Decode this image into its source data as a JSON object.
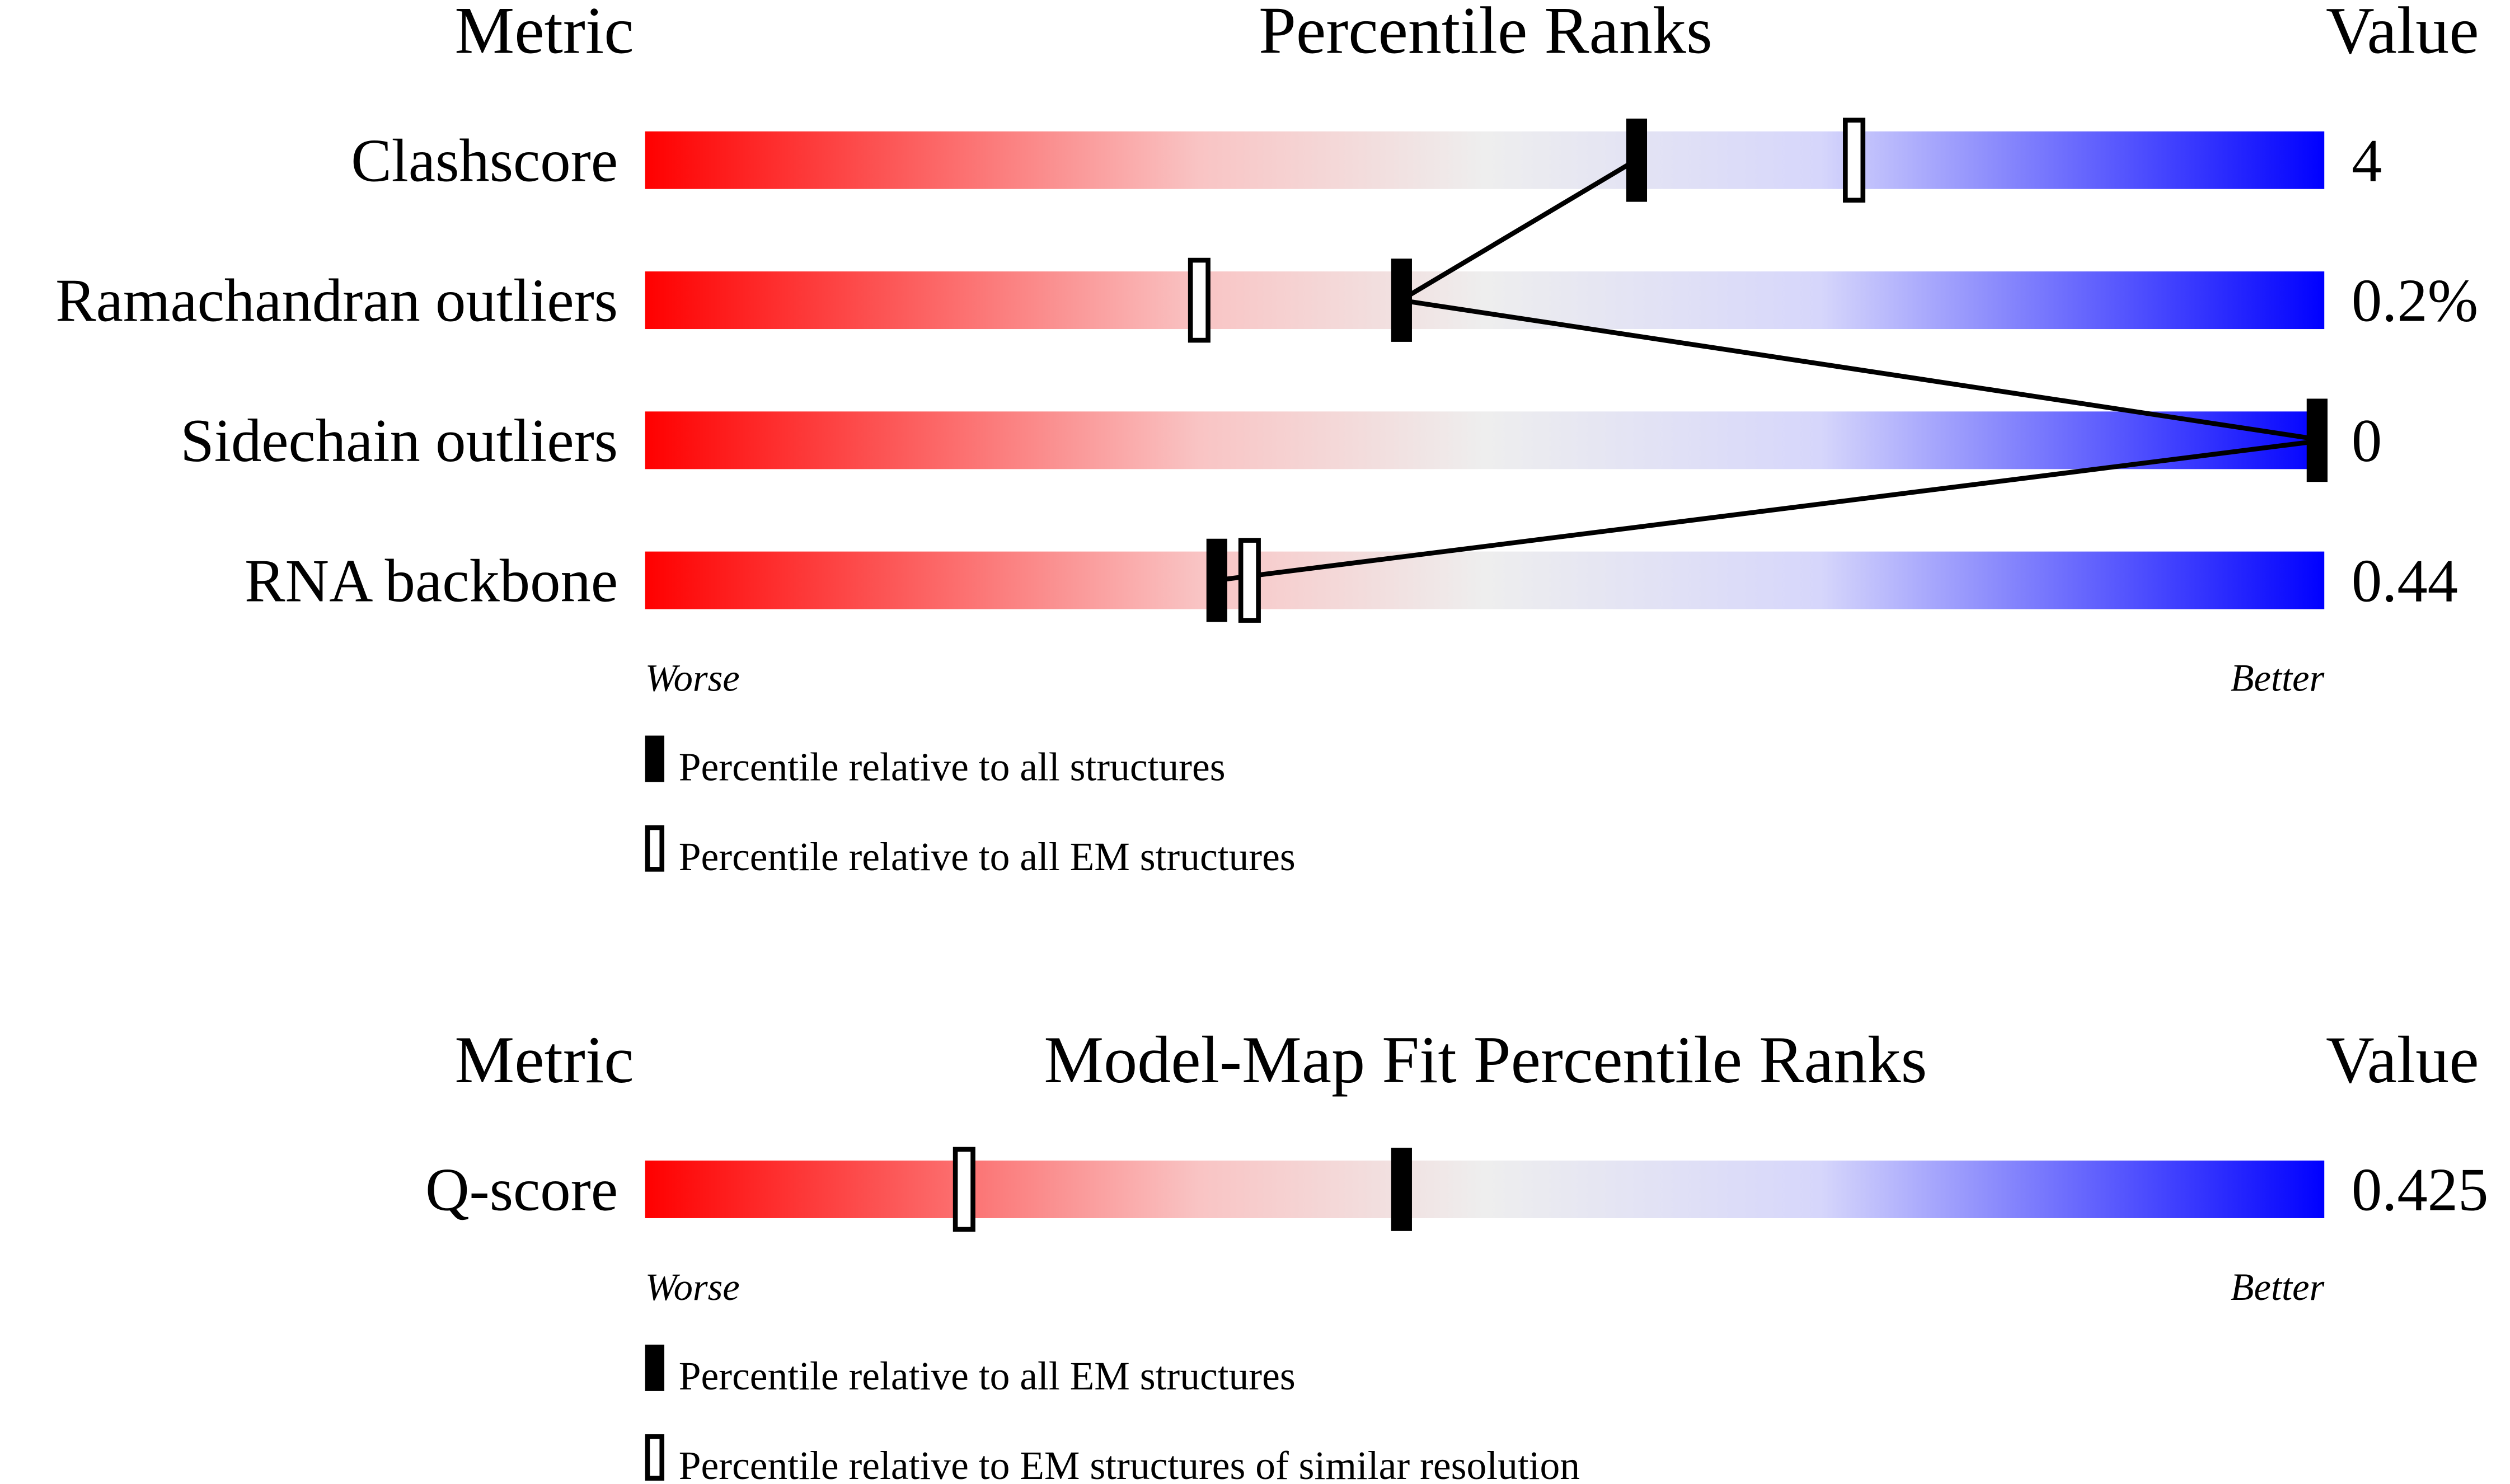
{
  "sections": [
    {
      "header": {
        "metric": "Metric",
        "title": "Percentile Ranks",
        "value": "Value"
      },
      "rows": [
        {
          "metric": "Clashscore",
          "value": "4",
          "percentile_filled": 59,
          "percentile_open": 72
        },
        {
          "metric": "Ramachandran outliers",
          "value": "0.2%",
          "percentile_filled": 45,
          "percentile_open": 33
        },
        {
          "metric": "Sidechain outliers",
          "value": "0",
          "percentile_filled": 100,
          "percentile_open": null
        },
        {
          "metric": "RNA backbone",
          "value": "0.44",
          "percentile_filled": 34,
          "percentile_open": 36
        }
      ],
      "worse": "Worse",
      "better": "Better",
      "legend": {
        "filled": "Percentile relative to all structures",
        "open": "Percentile relative to all EM structures"
      }
    },
    {
      "header": {
        "metric": "Metric",
        "title": "Model-Map Fit Percentile Ranks",
        "value": "Value"
      },
      "rows": [
        {
          "metric": "Q-score",
          "value": "0.425",
          "percentile_filled": 45,
          "percentile_open": 19
        }
      ],
      "worse": "Worse",
      "better": "Better",
      "legend": {
        "filled": "Percentile relative to all EM structures",
        "open": "Percentile relative to EM structures of similar resolution"
      }
    }
  ]
}
